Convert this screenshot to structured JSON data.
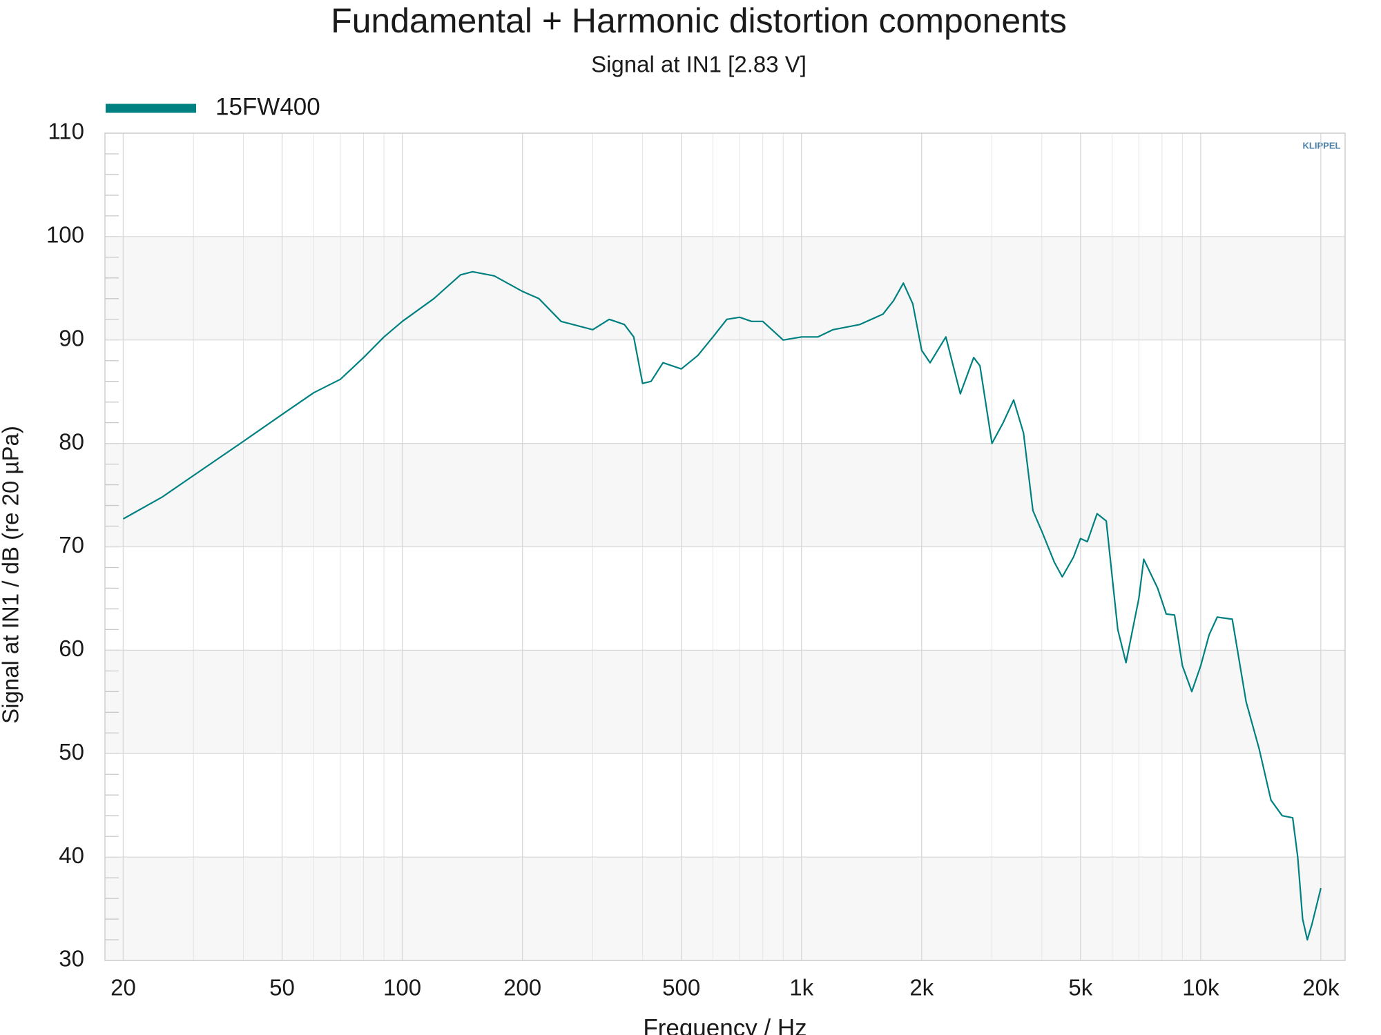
{
  "chart_data": {
    "type": "line",
    "title": "Fundamental + Harmonic distortion components",
    "subtitle": "Signal at IN1 [2.83 V]",
    "x_label": "Frequency / Hz",
    "y_label": "Signal at IN1 / dB (re 20 µPa)",
    "logo": "KLIPPEL",
    "log_x": true,
    "grid": true,
    "legend": "top-left",
    "xlim": [
      18,
      23000
    ],
    "ylim": [
      30,
      110
    ],
    "xticks": [
      20,
      50,
      100,
      200,
      500,
      {
        "value": 1000,
        "label": "1k"
      },
      {
        "value": 2000,
        "label": "2k"
      },
      {
        "value": 5000,
        "label": "5k"
      },
      {
        "value": 10000,
        "label": "10k"
      },
      {
        "value": 20000,
        "label": "20k"
      }
    ],
    "yticks": [
      30,
      40,
      50,
      60,
      70,
      80,
      90,
      100,
      110
    ],
    "x": [
      20,
      25,
      30,
      40,
      50,
      60,
      70,
      80,
      90,
      100,
      120,
      140,
      150,
      170,
      200,
      220,
      250,
      300,
      330,
      360,
      380,
      400,
      420,
      450,
      500,
      550,
      600,
      650,
      700,
      750,
      800,
      900,
      1000,
      1100,
      1200,
      1400,
      1600,
      1700,
      1800,
      1900,
      2000,
      2100,
      2300,
      2500,
      2700,
      2800,
      3000,
      3200,
      3400,
      3600,
      3800,
      4000,
      4300,
      4500,
      4800,
      5000,
      5200,
      5500,
      5800,
      6200,
      6500,
      7000,
      7200,
      7800,
      8200,
      8600,
      9000,
      9500,
      10000,
      10500,
      11000,
      12000,
      13000,
      14000,
      15000,
      16000,
      17000,
      17500,
      18000,
      18500,
      19000,
      20000
    ],
    "series": [
      {
        "name": "15FW400",
        "color": "#008080",
        "values": [
          72.7,
          74.8,
          76.9,
          80.2,
          82.8,
          84.9,
          86.2,
          88.3,
          90.3,
          91.8,
          94.0,
          96.3,
          96.6,
          96.2,
          94.7,
          94.0,
          91.8,
          91.0,
          92.0,
          91.5,
          90.3,
          85.8,
          86.0,
          87.8,
          87.2,
          88.5,
          90.3,
          92.0,
          92.2,
          91.8,
          91.8,
          90.0,
          90.3,
          90.3,
          91.0,
          91.5,
          92.5,
          93.8,
          95.5,
          93.5,
          89.0,
          87.8,
          90.3,
          84.8,
          88.3,
          87.5,
          80.0,
          82.0,
          84.2,
          81.0,
          73.5,
          71.5,
          68.5,
          67.1,
          69.0,
          70.8,
          70.5,
          73.2,
          72.5,
          62.0,
          58.8,
          65.0,
          68.8,
          66.0,
          63.5,
          63.4,
          58.5,
          56.0,
          58.5,
          61.5,
          63.2,
          63.0,
          55.0,
          50.5,
          45.5,
          44.0,
          43.8,
          40.0,
          34.0,
          32.0,
          33.5,
          37.0
        ]
      }
    ]
  }
}
